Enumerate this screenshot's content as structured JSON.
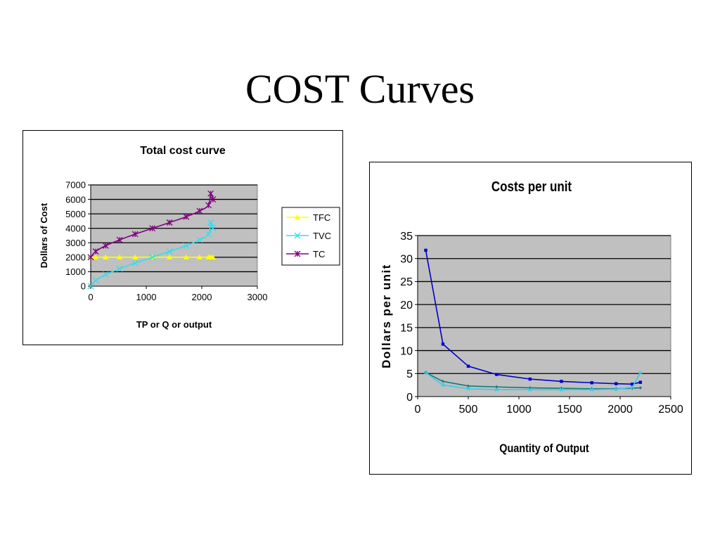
{
  "slide": {
    "title": "COST Curves"
  },
  "chart_data": [
    {
      "type": "line",
      "title": "Total cost curve",
      "xlabel": "TP or Q or output",
      "ylabel": "Dollars of Cost",
      "xlim": [
        0,
        3000
      ],
      "ylim": [
        0,
        7000
      ],
      "xticks": [
        0,
        1000,
        2000,
        3000
      ],
      "yticks": [
        0,
        1000,
        2000,
        3000,
        4000,
        5000,
        6000,
        7000
      ],
      "grid": "horizontal",
      "plot_background": "#c0c0c0",
      "legend_position": "right",
      "series": [
        {
          "name": "TFC",
          "color": "#ffff00",
          "marker": "triangle",
          "x": [
            0,
            90,
            270,
            520,
            800,
            1110,
            1420,
            1720,
            1960,
            2120,
            2160,
            2200
          ],
          "y": [
            2000,
            2000,
            2000,
            2000,
            2000,
            2000,
            2000,
            2000,
            2000,
            2000,
            2000,
            2000
          ]
        },
        {
          "name": "TVC",
          "color": "#33ddee",
          "marker": "x",
          "x": [
            0,
            90,
            270,
            520,
            800,
            1110,
            1420,
            1720,
            1960,
            2120,
            2160,
            2200
          ],
          "y": [
            0,
            400,
            800,
            1200,
            1600,
            2000,
            2400,
            2800,
            3200,
            3600,
            4400,
            4000
          ]
        },
        {
          "name": "TC",
          "color": "#800080",
          "marker": "asterisk",
          "x": [
            0,
            90,
            270,
            520,
            800,
            1110,
            1420,
            1720,
            1960,
            2120,
            2160,
            2200
          ],
          "y": [
            2000,
            2400,
            2800,
            3200,
            3600,
            4000,
            4400,
            4800,
            5200,
            5600,
            6400,
            6000
          ]
        }
      ]
    },
    {
      "type": "line",
      "title": "Costs per unit",
      "xlabel": "Quantity of Output",
      "ylabel": "Dollars per unit",
      "xlim": [
        0,
        2500
      ],
      "ylim": [
        0,
        35
      ],
      "xticks": [
        0,
        500,
        1000,
        1500,
        2000,
        2500
      ],
      "yticks": [
        0,
        5,
        10,
        15,
        20,
        25,
        30,
        35
      ],
      "grid": "horizontal",
      "plot_background": "#c0c0c0",
      "series": [
        {
          "color": "#0000cc",
          "marker": "square",
          "x": [
            80,
            250,
            500,
            780,
            1110,
            1420,
            1720,
            1960,
            2120,
            2200
          ],
          "y": [
            31.8,
            11.4,
            6.6,
            4.8,
            3.8,
            3.3,
            3.0,
            2.8,
            2.7,
            3.1
          ]
        },
        {
          "color": "#117a78",
          "marker": "plus",
          "x": [
            80,
            250,
            500,
            780,
            1110,
            1420,
            1720,
            1960,
            2120,
            2200
          ],
          "y": [
            5.2,
            3.3,
            2.3,
            2.1,
            1.9,
            1.8,
            1.7,
            1.7,
            1.8,
            1.9
          ]
        },
        {
          "color": "#33ccee",
          "marker": "x",
          "x": [
            80,
            250,
            500,
            780,
            1110,
            1420,
            1720,
            1960,
            2120,
            2200
          ],
          "y": [
            5.2,
            2.5,
            1.7,
            1.5,
            1.5,
            1.5,
            1.5,
            1.6,
            2.0,
            5.2
          ]
        }
      ]
    }
  ]
}
